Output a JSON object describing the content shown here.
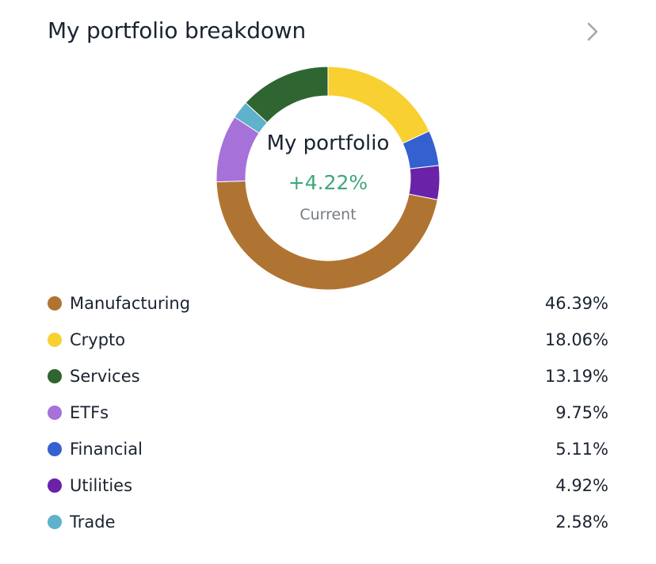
{
  "card": {
    "title": "My portfolio breakdown",
    "chevron_icon": "chevron-right-icon"
  },
  "center": {
    "title": "My portfolio",
    "change": "+4.22%",
    "change_color": "#3fa876",
    "subtitle": "Current"
  },
  "chart_data": {
    "type": "pie",
    "donut": true,
    "categories": [
      "Manufacturing",
      "Crypto",
      "Services",
      "ETFs",
      "Financial",
      "Utilities",
      "Trade"
    ],
    "values": [
      46.39,
      18.06,
      13.19,
      9.75,
      5.11,
      4.92,
      2.58
    ],
    "value_labels": [
      "46.39%",
      "18.06%",
      "13.19%",
      "9.75%",
      "5.11%",
      "4.92%",
      "2.58%"
    ],
    "colors": [
      "#b07432",
      "#f8d031",
      "#2f6530",
      "#a671d8",
      "#3560cf",
      "#6a22a8",
      "#5fb1cc"
    ],
    "draw_order": [
      "Crypto",
      "Financial",
      "Utilities",
      "Manufacturing",
      "ETFs",
      "Trade",
      "Services"
    ],
    "start_angle_deg": 0,
    "direction": "clockwise",
    "legend_position": "bottom"
  }
}
